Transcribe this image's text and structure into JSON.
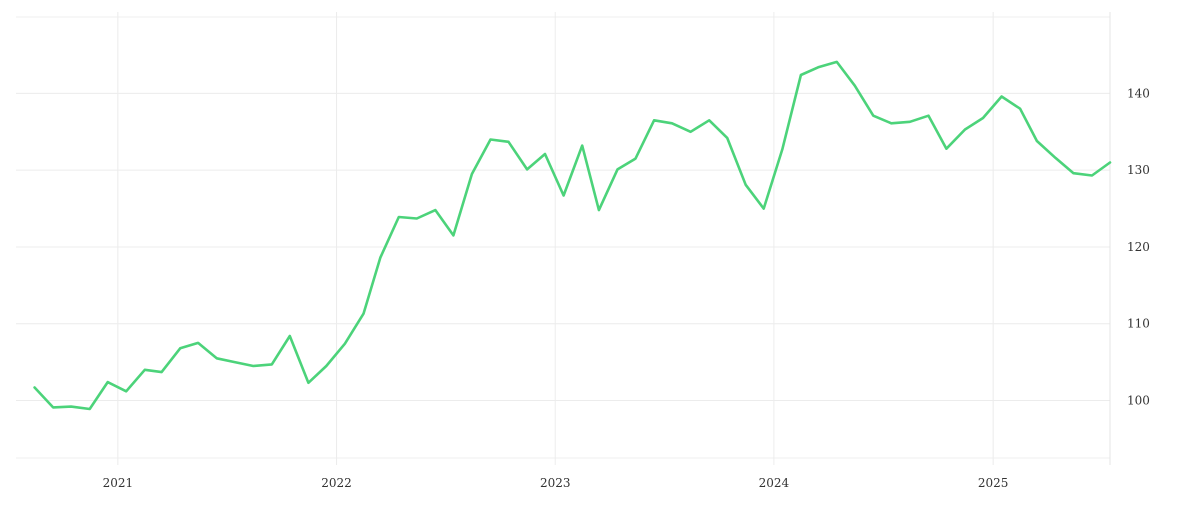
{
  "chart_data": {
    "type": "line",
    "title": "",
    "xlabel": "",
    "ylabel": "",
    "x_ticks": [
      "2021",
      "2022",
      "2023",
      "2024",
      "2025"
    ],
    "y_ticks": [
      100,
      110,
      120,
      130,
      140
    ],
    "ylim": [
      91.6,
      150.6
    ],
    "xlim": [
      "2020-07-15",
      "2025-07-15"
    ],
    "grid": true,
    "y_axis_side": "right",
    "series": [
      {
        "color": "#4cd37a",
        "x": [
          "2020-08",
          "2020-09",
          "2020-10",
          "2020-11",
          "2020-12",
          "2021-01",
          "2021-02",
          "2021-03",
          "2021-04",
          "2021-05",
          "2021-06",
          "2021-07",
          "2021-08",
          "2021-09",
          "2021-10",
          "2021-11",
          "2021-12",
          "2022-01",
          "2022-02",
          "2022-03",
          "2022-04",
          "2022-05",
          "2022-06",
          "2022-07",
          "2022-08",
          "2022-09",
          "2022-10",
          "2022-11",
          "2022-12",
          "2023-01",
          "2023-02",
          "2023-03",
          "2023-04",
          "2023-05",
          "2023-06",
          "2023-07",
          "2023-08",
          "2023-09",
          "2023-10",
          "2023-11",
          "2023-12",
          "2024-01",
          "2024-02",
          "2024-03",
          "2024-04",
          "2024-05",
          "2024-06",
          "2024-07",
          "2024-08",
          "2024-09",
          "2024-10",
          "2024-11",
          "2024-12",
          "2025-01",
          "2025-02",
          "2025-03",
          "2025-04",
          "2025-05",
          "2025-06",
          "2025-07"
        ],
        "values": [
          101.7,
          99.1,
          99.2,
          98.9,
          102.4,
          101.2,
          104.0,
          103.7,
          106.8,
          107.5,
          105.5,
          105.0,
          104.5,
          104.7,
          108.4,
          102.3,
          104.5,
          107.4,
          111.3,
          118.6,
          123.9,
          123.7,
          124.8,
          121.5,
          129.5,
          134.0,
          133.7,
          130.1,
          132.1,
          126.7,
          133.2,
          124.8,
          130.1,
          131.5,
          136.5,
          136.1,
          135.0,
          136.5,
          134.2,
          128.1,
          125.0,
          132.7,
          142.4,
          143.4,
          144.1,
          141.0,
          137.1,
          136.1,
          136.3,
          137.1,
          132.8,
          135.3,
          136.8,
          139.6,
          138.0,
          133.8,
          131.6,
          129.6,
          129.3,
          131.0
        ]
      }
    ]
  }
}
